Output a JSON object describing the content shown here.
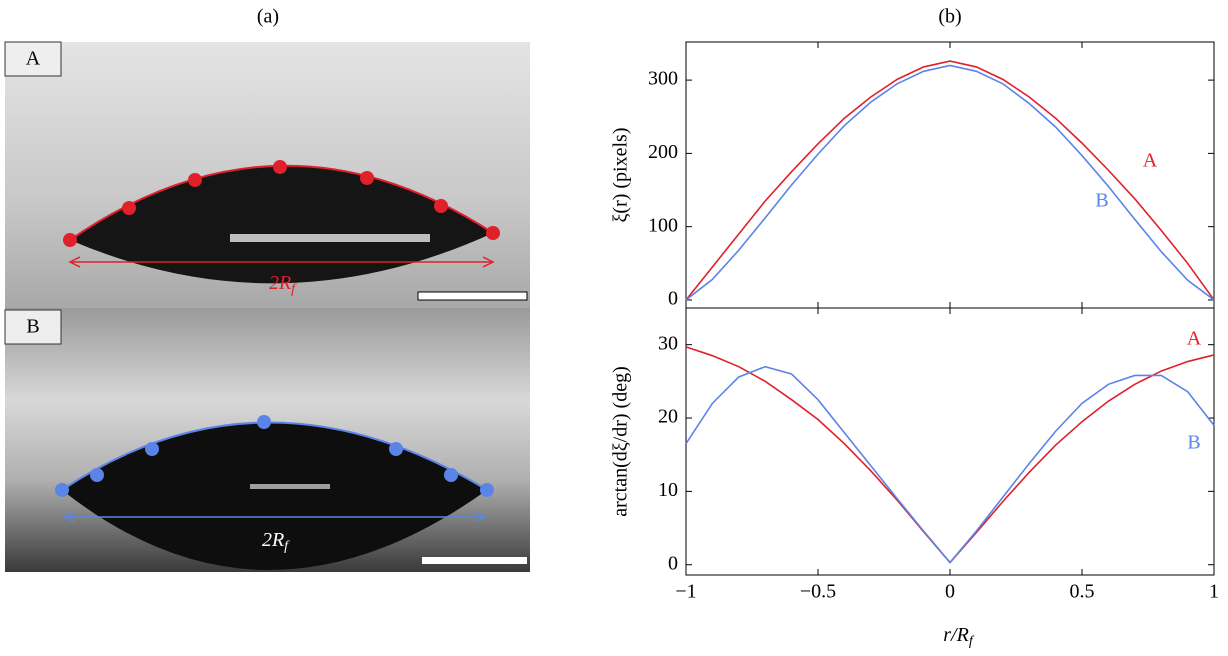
{
  "panel_a": {
    "label": "(a)",
    "photos": [
      {
        "label": "A",
        "span_main": "2R",
        "span_sub": "f"
      },
      {
        "label": "B",
        "span_main": "2R",
        "span_sub": "f"
      }
    ]
  },
  "panel_b": {
    "label": "(b)"
  },
  "chart_data": [
    {
      "type": "line",
      "ylabel": "ξ(r) (pixels)",
      "x": [
        -1,
        -0.9,
        -0.8,
        -0.7,
        -0.6,
        -0.5,
        -0.4,
        -0.3,
        -0.2,
        -0.1,
        0,
        0.1,
        0.2,
        0.3,
        0.4,
        0.5,
        0.6,
        0.7,
        0.8,
        0.9,
        1
      ],
      "series": [
        {
          "name": "A",
          "color": "#e0202a",
          "values": [
            0,
            45,
            90,
            135,
            175,
            213,
            248,
            277,
            301,
            318,
            326,
            318,
            301,
            277,
            248,
            214,
            177,
            138,
            95,
            50,
            0
          ]
        },
        {
          "name": "B",
          "color": "#5b84e8",
          "values": [
            0,
            28,
            68,
            112,
            157,
            199,
            238,
            270,
            295,
            312,
            320,
            312,
            295,
            268,
            236,
            197,
            155,
            110,
            66,
            27,
            0
          ]
        }
      ],
      "xlim": [
        -1,
        1
      ],
      "xticks": [
        -1,
        -0.5,
        0,
        0.5,
        1
      ],
      "ylim": [
        -11,
        352
      ],
      "yticks": [
        0,
        100,
        200,
        300
      ]
    },
    {
      "type": "line",
      "ylabel": "arctan(dξ/dr) (deg)",
      "xlabel_main": "r/R",
      "xlabel_sub": "f",
      "x": [
        -1,
        -0.9,
        -0.8,
        -0.7,
        -0.6,
        -0.5,
        -0.4,
        -0.3,
        -0.2,
        -0.1,
        0,
        0.1,
        0.2,
        0.3,
        0.4,
        0.5,
        0.6,
        0.7,
        0.8,
        0.9,
        1
      ],
      "series": [
        {
          "name": "A",
          "color": "#e0202a",
          "values": [
            29.7,
            28.5,
            27,
            25,
            22.5,
            19.8,
            16.5,
            12.8,
            8.8,
            4.5,
            0.3,
            4.4,
            8.6,
            12.6,
            16.3,
            19.5,
            22.3,
            24.6,
            26.4,
            27.7,
            28.6
          ]
        },
        {
          "name": "B",
          "color": "#5b84e8",
          "values": [
            16.5,
            22,
            25.6,
            27,
            26,
            22.5,
            18,
            13.5,
            9,
            4.6,
            0.3,
            4.6,
            9.2,
            13.8,
            18.2,
            22,
            24.6,
            25.8,
            25.8,
            23.6,
            19
          ]
        }
      ],
      "xlim": [
        -1,
        1
      ],
      "xticks": [
        {
          "value": -1,
          "label": "−1"
        },
        {
          "value": -0.5,
          "label": "−0.5"
        },
        0,
        0.5,
        1
      ],
      "ylim": [
        -1.4,
        35
      ],
      "yticks": [
        0,
        10,
        20,
        30
      ]
    }
  ]
}
